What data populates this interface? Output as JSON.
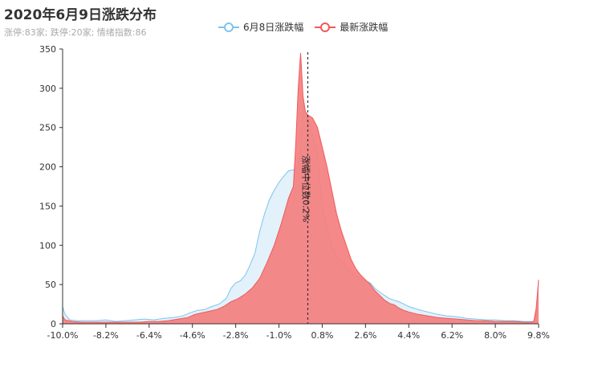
{
  "chart_data": {
    "type": "area",
    "title": "2020年6月9日涨跌分布",
    "subtitle": "涨停:83家; 跌停:20家; 情绪指数:86",
    "xlabel": "",
    "ylabel": "",
    "ylim": [
      0,
      350
    ],
    "yticks": [
      "0",
      "50",
      "100",
      "150",
      "200",
      "250",
      "300",
      "350"
    ],
    "xticks": [
      "-10.0%",
      "-8.2%",
      "-6.4%",
      "-4.6%",
      "-2.8%",
      "-1.0%",
      "0.8%",
      "2.6%",
      "4.4%",
      "6.2%",
      "8.0%",
      "9.8%"
    ],
    "xrange": [
      -10.0,
      9.8
    ],
    "legend_position": "top-center",
    "grid": false,
    "markline": {
      "x": 0.2,
      "label": "涨幅中位数0.2%"
    },
    "series": [
      {
        "name": "6月8日涨跌幅",
        "color": "#7fc4ec",
        "fill": "#dff0fa",
        "points": [
          [
            -10.0,
            22
          ],
          [
            -9.9,
            12
          ],
          [
            -9.7,
            5
          ],
          [
            -9.4,
            4
          ],
          [
            -9.0,
            4
          ],
          [
            -8.6,
            4
          ],
          [
            -8.2,
            5
          ],
          [
            -7.8,
            3
          ],
          [
            -7.4,
            4
          ],
          [
            -7.0,
            5
          ],
          [
            -6.6,
            6
          ],
          [
            -6.2,
            5
          ],
          [
            -5.8,
            7
          ],
          [
            -5.4,
            8
          ],
          [
            -5.0,
            10
          ],
          [
            -4.7,
            14
          ],
          [
            -4.4,
            17
          ],
          [
            -4.1,
            18
          ],
          [
            -3.8,
            22
          ],
          [
            -3.5,
            25
          ],
          [
            -3.2,
            32
          ],
          [
            -3.0,
            45
          ],
          [
            -2.8,
            52
          ],
          [
            -2.6,
            55
          ],
          [
            -2.4,
            62
          ],
          [
            -2.2,
            75
          ],
          [
            -2.0,
            90
          ],
          [
            -1.8,
            118
          ],
          [
            -1.6,
            140
          ],
          [
            -1.4,
            158
          ],
          [
            -1.2,
            170
          ],
          [
            -1.0,
            180
          ],
          [
            -0.8,
            188
          ],
          [
            -0.6,
            195
          ],
          [
            -0.4,
            196
          ],
          [
            -0.2,
            200
          ],
          [
            -0.1,
            220
          ],
          [
            0.0,
            280
          ],
          [
            0.1,
            270
          ],
          [
            0.2,
            262
          ],
          [
            0.4,
            240
          ],
          [
            0.6,
            215
          ],
          [
            0.8,
            150
          ],
          [
            1.0,
            120
          ],
          [
            1.2,
            100
          ],
          [
            1.4,
            85
          ],
          [
            1.6,
            80
          ],
          [
            1.8,
            72
          ],
          [
            2.0,
            66
          ],
          [
            2.2,
            60
          ],
          [
            2.4,
            58
          ],
          [
            2.6,
            55
          ],
          [
            2.8,
            52
          ],
          [
            3.0,
            45
          ],
          [
            3.2,
            40
          ],
          [
            3.4,
            36
          ],
          [
            3.6,
            32
          ],
          [
            3.8,
            30
          ],
          [
            4.0,
            28
          ],
          [
            4.2,
            25
          ],
          [
            4.4,
            22
          ],
          [
            4.8,
            18
          ],
          [
            5.2,
            15
          ],
          [
            5.6,
            12
          ],
          [
            6.0,
            10
          ],
          [
            6.4,
            9
          ],
          [
            6.8,
            7
          ],
          [
            7.2,
            6
          ],
          [
            7.6,
            5
          ],
          [
            8.0,
            5
          ],
          [
            8.4,
            4
          ],
          [
            8.8,
            4
          ],
          [
            9.2,
            3
          ],
          [
            9.6,
            3
          ],
          [
            9.7,
            10
          ],
          [
            9.8,
            55
          ]
        ]
      },
      {
        "name": "最新涨跌幅",
        "color": "#f05a5a",
        "fill": "#f47f7f",
        "points": [
          [
            -10.0,
            10
          ],
          [
            -9.9,
            5
          ],
          [
            -9.6,
            3
          ],
          [
            -9.2,
            2
          ],
          [
            -8.8,
            2
          ],
          [
            -8.4,
            2
          ],
          [
            -8.0,
            2
          ],
          [
            -7.6,
            2
          ],
          [
            -7.2,
            2
          ],
          [
            -6.8,
            2
          ],
          [
            -6.4,
            3
          ],
          [
            -6.0,
            3
          ],
          [
            -5.6,
            4
          ],
          [
            -5.2,
            6
          ],
          [
            -4.8,
            8
          ],
          [
            -4.5,
            12
          ],
          [
            -4.2,
            14
          ],
          [
            -3.9,
            16
          ],
          [
            -3.6,
            18
          ],
          [
            -3.3,
            22
          ],
          [
            -3.0,
            28
          ],
          [
            -2.7,
            32
          ],
          [
            -2.4,
            38
          ],
          [
            -2.1,
            46
          ],
          [
            -1.8,
            58
          ],
          [
            -1.5,
            78
          ],
          [
            -1.2,
            100
          ],
          [
            -0.9,
            128
          ],
          [
            -0.6,
            160
          ],
          [
            -0.4,
            175
          ],
          [
            -0.3,
            230
          ],
          [
            -0.2,
            300
          ],
          [
            -0.1,
            345
          ],
          [
            0.0,
            290
          ],
          [
            0.1,
            270
          ],
          [
            0.2,
            266
          ],
          [
            0.4,
            262
          ],
          [
            0.6,
            250
          ],
          [
            0.8,
            225
          ],
          [
            1.0,
            200
          ],
          [
            1.2,
            170
          ],
          [
            1.4,
            140
          ],
          [
            1.6,
            118
          ],
          [
            1.8,
            100
          ],
          [
            2.0,
            82
          ],
          [
            2.2,
            70
          ],
          [
            2.4,
            62
          ],
          [
            2.6,
            56
          ],
          [
            2.8,
            50
          ],
          [
            3.0,
            42
          ],
          [
            3.2,
            36
          ],
          [
            3.4,
            30
          ],
          [
            3.6,
            26
          ],
          [
            3.8,
            24
          ],
          [
            4.0,
            20
          ],
          [
            4.2,
            17
          ],
          [
            4.4,
            15
          ],
          [
            4.8,
            12
          ],
          [
            5.2,
            10
          ],
          [
            5.6,
            8
          ],
          [
            6.0,
            7
          ],
          [
            6.4,
            6
          ],
          [
            6.8,
            5
          ],
          [
            7.2,
            4
          ],
          [
            7.6,
            4
          ],
          [
            8.0,
            3
          ],
          [
            8.4,
            3
          ],
          [
            8.8,
            3
          ],
          [
            9.2,
            2
          ],
          [
            9.5,
            2
          ],
          [
            9.6,
            3
          ],
          [
            9.7,
            20
          ],
          [
            9.8,
            56
          ]
        ]
      }
    ]
  }
}
